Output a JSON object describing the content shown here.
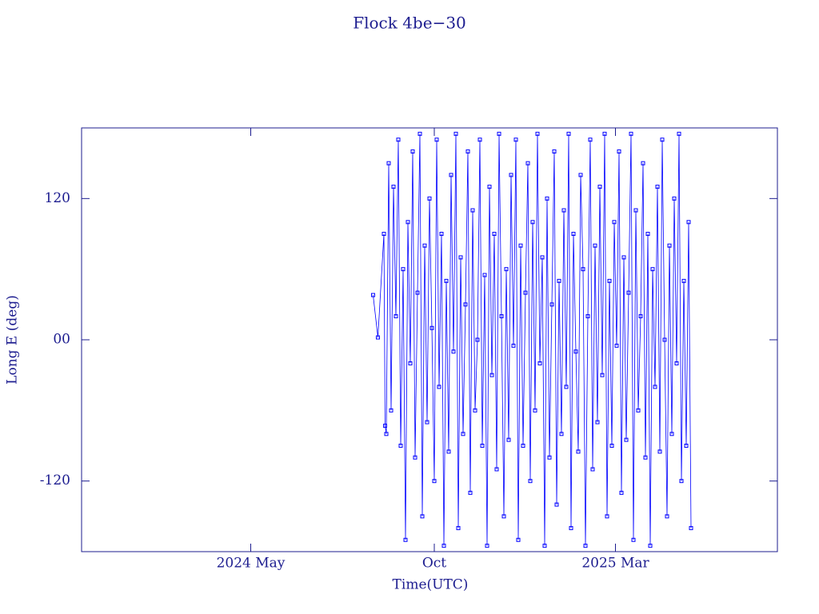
{
  "chart_data": {
    "type": "line",
    "title": "Flock 4be−30",
    "x_label": "Time(UTC)",
    "y_label": "Long E (deg)",
    "xlim": [
      -20,
      560
    ],
    "ylim": [
      -180,
      180
    ],
    "xticks": [
      {
        "value": 121,
        "label": "2024 May"
      },
      {
        "value": 274,
        "label": "Oct"
      },
      {
        "value": 425,
        "label": "2025 Mar"
      }
    ],
    "yticks": [
      120,
      {
        "value": 0,
        "label": "00"
      },
      -120
    ],
    "x": [
      223,
      227,
      232,
      233,
      234,
      236,
      238,
      240,
      242,
      244,
      246,
      248,
      250,
      252,
      254,
      256,
      258,
      260,
      262,
      264,
      266,
      268,
      270,
      272,
      274,
      276,
      278,
      280,
      282,
      284,
      286,
      288,
      290,
      292,
      294,
      296,
      298,
      300,
      302,
      304,
      306,
      308,
      310,
      312,
      314,
      316,
      318,
      320,
      322,
      324,
      326,
      328,
      330,
      332,
      334,
      336,
      338,
      340,
      342,
      344,
      346,
      348,
      350,
      352,
      354,
      356,
      358,
      360,
      362,
      364,
      366,
      368,
      370,
      372,
      374,
      376,
      378,
      380,
      382,
      384,
      386,
      388,
      390,
      392,
      394,
      396,
      398,
      400,
      402,
      404,
      406,
      408,
      410,
      412,
      414,
      416,
      418,
      420,
      422,
      424,
      426,
      428,
      430,
      432,
      434,
      436,
      438,
      440,
      442,
      444,
      446,
      448,
      450,
      452,
      454,
      456,
      458,
      460,
      462,
      464,
      466,
      468,
      470,
      472,
      474,
      476,
      478,
      480,
      482,
      484,
      486,
      488
    ],
    "series": [
      {
        "color": "#0000ff",
        "values": [
          38,
          2,
          90,
          -73,
          -80,
          150,
          -60,
          130,
          20,
          170,
          -90,
          60,
          -170,
          100,
          -20,
          160,
          -100,
          40,
          175,
          -150,
          80,
          -70,
          120,
          10,
          -120,
          170,
          -40,
          90,
          -175,
          50,
          -95,
          140,
          -10,
          175,
          -160,
          70,
          -80,
          30,
          160,
          -130,
          110,
          -60,
          0,
          170,
          -90,
          55,
          -175,
          130,
          -30,
          90,
          -110,
          175,
          20,
          -150,
          60,
          -85,
          140,
          -5,
          170,
          -170,
          80,
          -90,
          40,
          150,
          -120,
          100,
          -60,
          175,
          -20,
          70,
          -175,
          120,
          -100,
          30,
          160,
          -140,
          50,
          -80,
          110,
          -40,
          175,
          -160,
          90,
          -10,
          -95,
          140,
          60,
          -175,
          20,
          170,
          -110,
          80,
          -70,
          130,
          -30,
          175,
          -150,
          50,
          -90,
          100,
          -5,
          160,
          -130,
          70,
          -85,
          40,
          175,
          -170,
          110,
          -60,
          20,
          150,
          -100,
          90,
          -175,
          60,
          -40,
          130,
          -95,
          170,
          0,
          -150,
          80,
          -80,
          120,
          -20,
          175,
          -120,
          50,
          -90,
          100,
          -160
        ]
      }
    ]
  }
}
